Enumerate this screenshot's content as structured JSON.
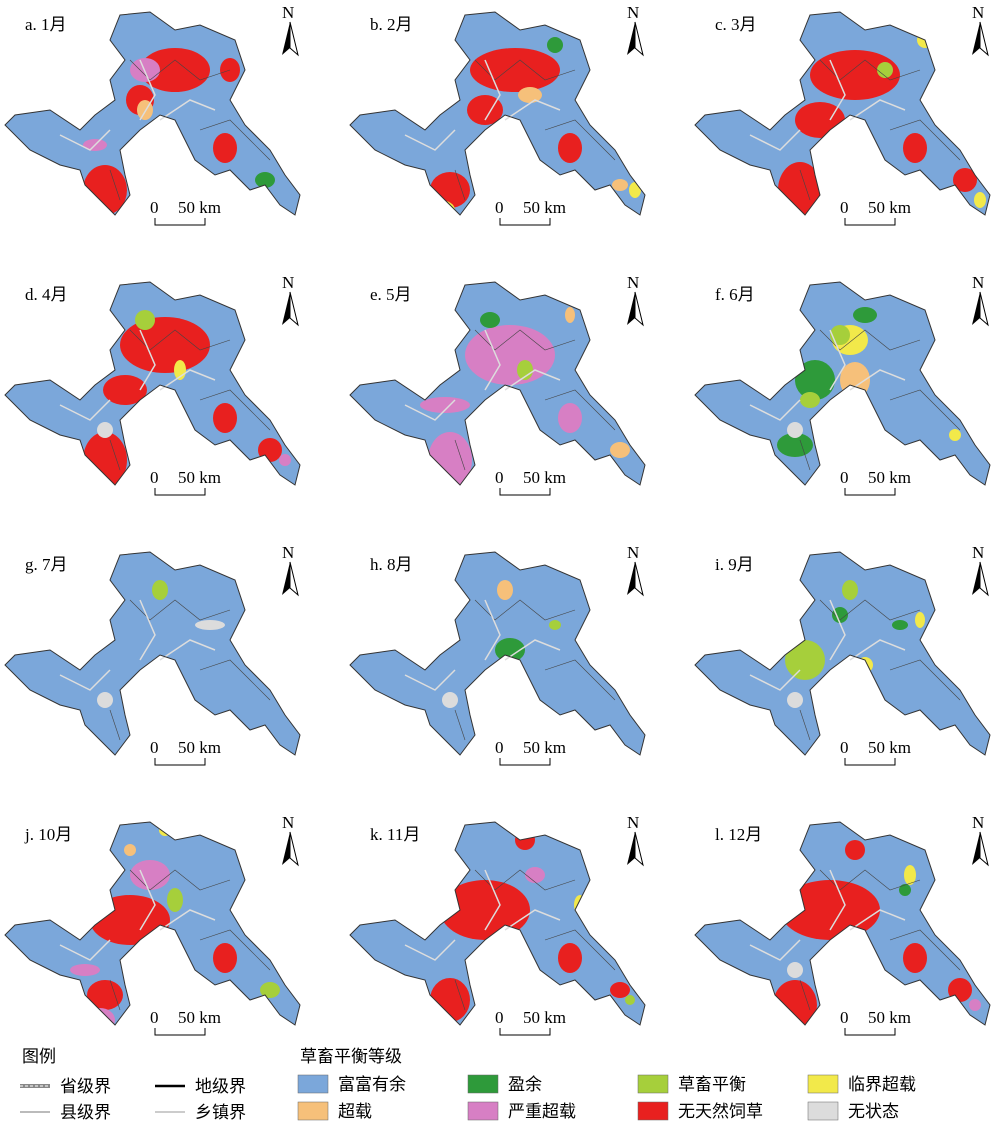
{
  "panels": [
    {
      "label": "a. 1月"
    },
    {
      "label": "b. 2月"
    },
    {
      "label": "c. 3月"
    },
    {
      "label": "d. 4月"
    },
    {
      "label": "e. 5月"
    },
    {
      "label": "f. 6月"
    },
    {
      "label": "g. 7月"
    },
    {
      "label": "h. 8月"
    },
    {
      "label": "i. 9月"
    },
    {
      "label": "j. 10月"
    },
    {
      "label": "k. 11月"
    },
    {
      "label": "l. 12月"
    }
  ],
  "north_label": "N",
  "scale_start": "0",
  "scale_end": "50 km",
  "legend": {
    "title": "图例",
    "boundaries": [
      "省级界",
      "地级界",
      "县级界",
      "乡镇界"
    ],
    "class_title": "草畜平衡等级",
    "classes": [
      {
        "name": "富富有余",
        "color": "#7ba7da"
      },
      {
        "name": "盈余",
        "color": "#2e9a3a"
      },
      {
        "name": "草畜平衡",
        "color": "#a6cf3b"
      },
      {
        "name": "临界超载",
        "color": "#f2e94a"
      },
      {
        "name": "超载",
        "color": "#f6c07a"
      },
      {
        "name": "严重超载",
        "color": "#d77fc4"
      },
      {
        "name": "无天然饲草",
        "color": "#e8201f"
      },
      {
        "name": "无状态",
        "color": "#dcdcdc"
      }
    ]
  }
}
